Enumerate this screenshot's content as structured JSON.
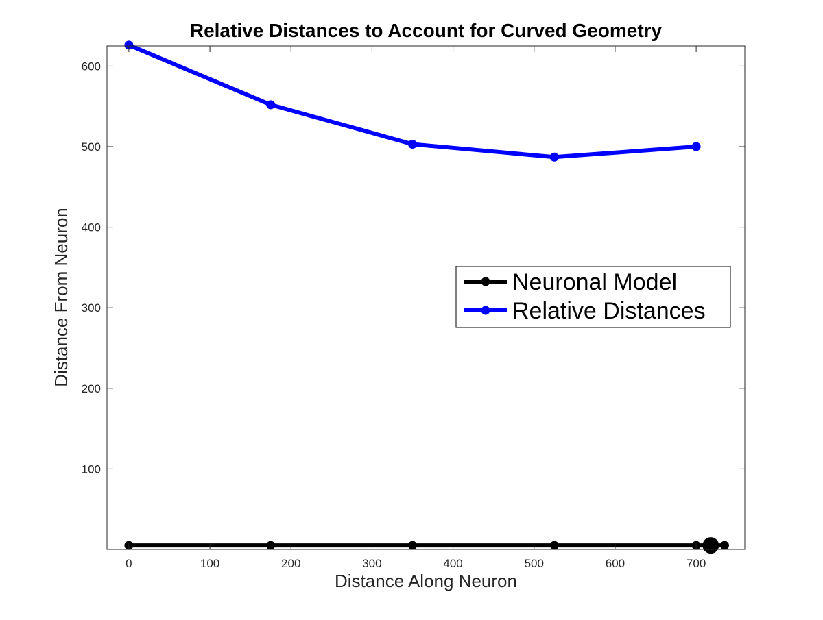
{
  "chart_data": {
    "type": "line",
    "title": "Relative Distances to Account for Curved Geometry",
    "xlabel": "Distance Along Neuron",
    "ylabel": "Distance From Neuron",
    "xlim": [
      -27,
      760
    ],
    "ylim": [
      0,
      625
    ],
    "x_ticks": [
      0,
      100,
      200,
      300,
      400,
      500,
      600,
      700
    ],
    "y_ticks": [
      100,
      200,
      300,
      400,
      500,
      600
    ],
    "grid": false,
    "legend_position": "center-right",
    "series": [
      {
        "name": "Neuronal Model",
        "color": "#000000",
        "marker": "circle",
        "points": [
          {
            "x": 0,
            "y": 5
          },
          {
            "x": 175,
            "y": 5
          },
          {
            "x": 350,
            "y": 5
          },
          {
            "x": 525,
            "y": 5
          },
          {
            "x": 700,
            "y": 5
          },
          {
            "x": 735,
            "y": 5
          }
        ]
      },
      {
        "name": "Relative Distances",
        "color": "#0000ff",
        "marker": "circle",
        "points": [
          {
            "x": 0,
            "y": 626
          },
          {
            "x": 175,
            "y": 552
          },
          {
            "x": 350,
            "y": 503
          },
          {
            "x": 525,
            "y": 487
          },
          {
            "x": 700,
            "y": 500
          }
        ]
      }
    ],
    "soma_marker": {
      "x": 718,
      "y": 5,
      "color": "#000000"
    }
  }
}
